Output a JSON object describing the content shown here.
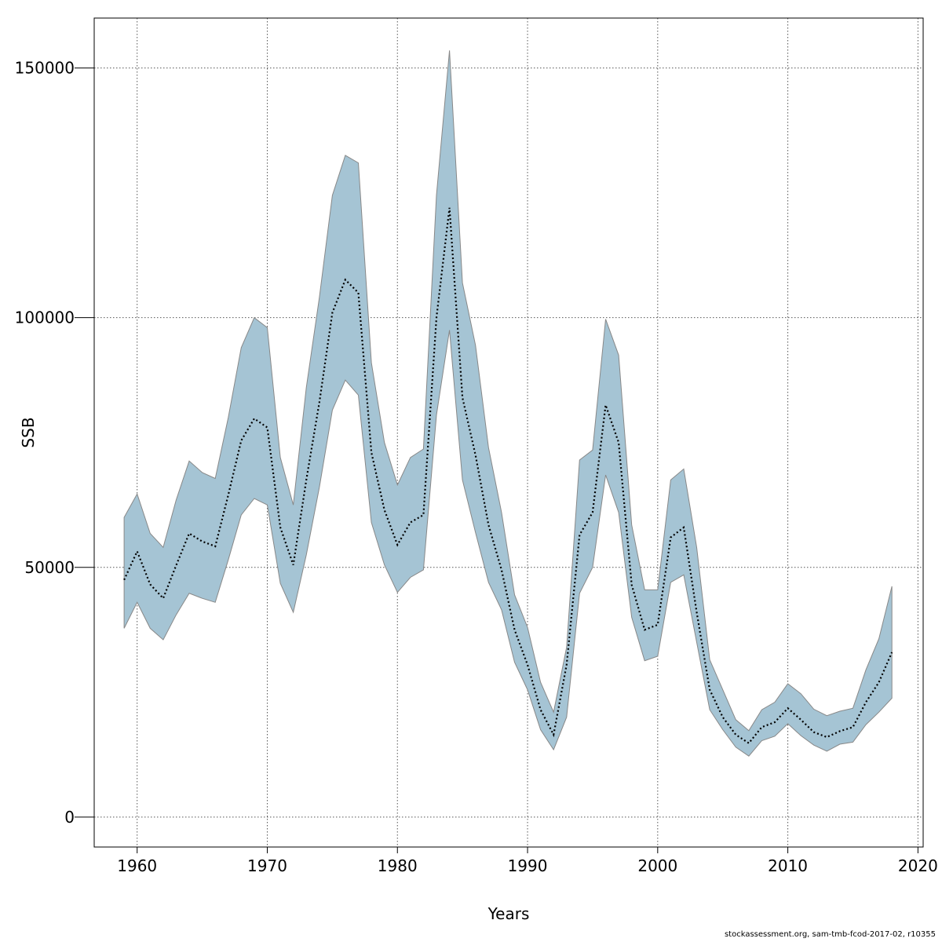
{
  "chart_data": {
    "type": "area",
    "title": "",
    "xlabel": "Years",
    "ylabel": "SSB",
    "xlim": [
      1956.7,
      2020.4
    ],
    "ylim": [
      -6000,
      160000
    ],
    "xticks": [
      1960,
      1970,
      1980,
      1990,
      2000,
      2010,
      2020
    ],
    "yticks": [
      0,
      50000,
      100000,
      150000
    ],
    "xtick_labels": [
      "1960",
      "1970",
      "1980",
      "1990",
      "2000",
      "2010",
      "2020"
    ],
    "ytick_labels": [
      "0",
      "50000",
      "100000",
      "150000"
    ],
    "grid": true,
    "colors": {
      "band_fill": "#a5c4d4",
      "band_stroke": "#888888",
      "line": "#000000",
      "grid": "#555555"
    },
    "x": [
      1959,
      1960,
      1961,
      1962,
      1963,
      1964,
      1965,
      1966,
      1967,
      1968,
      1969,
      1970,
      1971,
      1972,
      1973,
      1974,
      1975,
      1976,
      1977,
      1978,
      1979,
      1980,
      1981,
      1982,
      1983,
      1984,
      1985,
      1986,
      1987,
      1988,
      1989,
      1990,
      1991,
      1992,
      1993,
      1994,
      1995,
      1996,
      1997,
      1998,
      1999,
      2000,
      2001,
      2002,
      2003,
      2004,
      2005,
      2006,
      2007,
      2008,
      2009,
      2010,
      2011,
      2012,
      2013,
      2014,
      2015,
      2016,
      2017,
      2018
    ],
    "series": [
      {
        "role": "estimate",
        "style": "dotted",
        "values": [
          47500,
          53200,
          46600,
          43800,
          50400,
          56800,
          55200,
          54200,
          64500,
          75400,
          79800,
          78000,
          58000,
          50500,
          67500,
          83000,
          101000,
          107600,
          105000,
          73000,
          61500,
          54500,
          59000,
          60500,
          100000,
          122000,
          84000,
          72500,
          58500,
          49500,
          37500,
          30500,
          21500,
          16500,
          30500,
          56500,
          61000,
          82500,
          75000,
          46500,
          37500,
          38500,
          56000,
          58000,
          41000,
          25500,
          20000,
          16500,
          14800,
          18000,
          19000,
          21800,
          19500,
          17000,
          16000,
          17200,
          18000,
          23000,
          27000,
          33000
        ]
      },
      {
        "role": "upper",
        "values": [
          60000,
          64700,
          56800,
          54000,
          63500,
          71300,
          69000,
          67800,
          80000,
          94000,
          100000,
          98000,
          72000,
          62500,
          86000,
          104000,
          124500,
          132500,
          131000,
          91000,
          75000,
          66500,
          72000,
          73700,
          124500,
          153500,
          107000,
          94500,
          74000,
          61000,
          44500,
          38000,
          27000,
          21000,
          34000,
          71500,
          73500,
          99700,
          92500,
          58500,
          45500,
          45500,
          67500,
          69700,
          54000,
          31500,
          25500,
          19500,
          17300,
          21500,
          23000,
          26700,
          24700,
          21600,
          20300,
          21200,
          21800,
          29500,
          35700,
          46200
        ]
      },
      {
        "role": "lower",
        "values": [
          37800,
          43000,
          37800,
          35500,
          40500,
          44800,
          43800,
          43000,
          51500,
          60500,
          63800,
          62500,
          46800,
          41000,
          52500,
          66000,
          81500,
          87500,
          84500,
          59000,
          50500,
          45000,
          48000,
          49500,
          80500,
          97500,
          67500,
          57000,
          47000,
          41500,
          31000,
          25500,
          17500,
          13500,
          20000,
          44800,
          50000,
          68500,
          61000,
          40000,
          31300,
          32200,
          47000,
          48500,
          35000,
          21500,
          17500,
          14000,
          12200,
          15300,
          16200,
          18700,
          16300,
          14400,
          13200,
          14600,
          15000,
          18500,
          21000,
          23800
        ]
      }
    ]
  },
  "footer": "stockassessment.org, sam-tmb-fcod-2017-02, r10355"
}
